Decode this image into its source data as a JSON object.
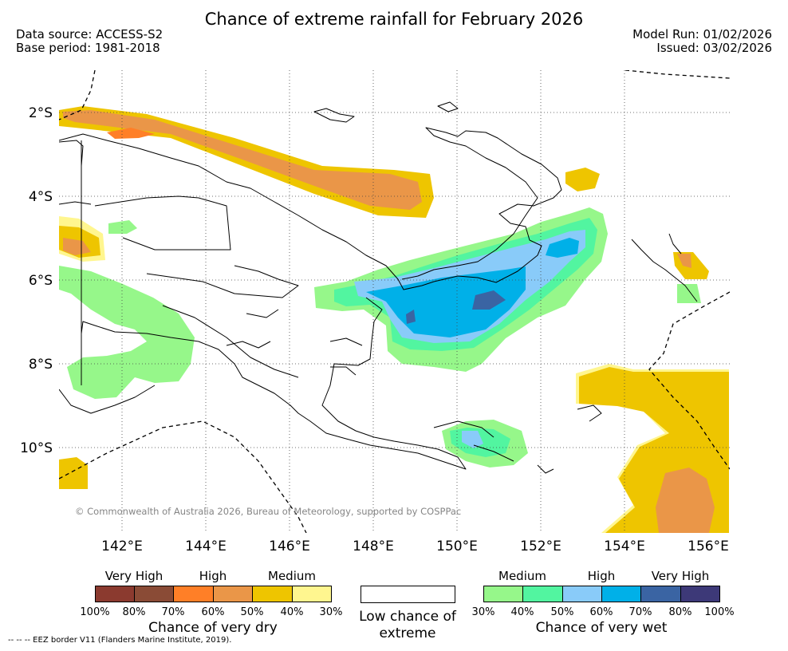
{
  "title": "Chance of extreme rainfall for February 2026",
  "header": {
    "data_source": "Data source: ACCESS-S2",
    "base_period": "Base period: 1981-2018",
    "model_run": "Model Run: 01/02/2026",
    "issued": "Issued: 03/02/2026"
  },
  "map": {
    "latitude_labels": [
      "2°S",
      "4°S",
      "6°S",
      "8°S",
      "10°S"
    ],
    "longitude_labels": [
      "142°E",
      "144°E",
      "146°E",
      "148°E",
      "150°E",
      "152°E",
      "154°E",
      "156°E"
    ],
    "copyright": "© Commonwealth of Australia 2026, Bureau of Meteorology, supported by COSPPac",
    "eez_note": "--  --  -- EEZ border V11 (Flanders Marine Institute, 2019)."
  },
  "legend": {
    "dry": {
      "title": "Chance of very dry",
      "levels": [
        "Very High",
        "High",
        "Medium"
      ],
      "ticks": [
        "100%",
        "80%",
        "70%",
        "60%",
        "50%",
        "40%",
        "30%"
      ],
      "colors": [
        "#8b3a2f",
        "#8a4b36",
        "#ff7f27",
        "#ea9648",
        "#eec500",
        "#fff68f"
      ]
    },
    "neutral": {
      "label": "Low chance of extreme"
    },
    "wet": {
      "title": "Chance of very wet",
      "levels": [
        "Medium",
        "High",
        "Very High"
      ],
      "ticks": [
        "30%",
        "40%",
        "50%",
        "60%",
        "70%",
        "80%",
        "100%"
      ],
      "colors": [
        "#96f78a",
        "#52f5a0",
        "#89cbf9",
        "#00b0e8",
        "#3a64a3",
        "#3d3978"
      ]
    }
  }
}
